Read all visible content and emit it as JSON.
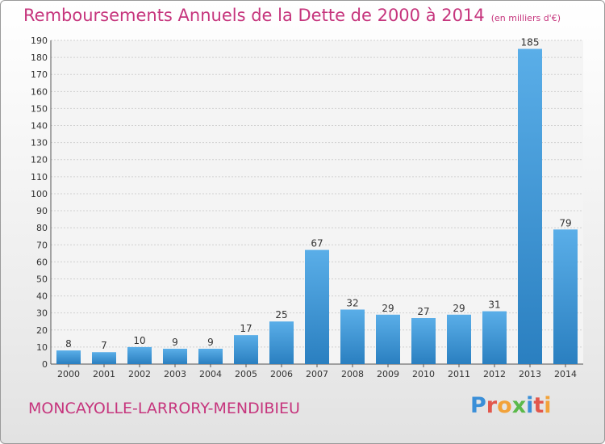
{
  "header": {
    "title": "Remboursements Annuels de la Dette de 2000 à 2014",
    "subtitle": "(en milliers d'€)"
  },
  "footer": {
    "commune": "MONCAYOLLE-LARRORY-MENDIBIEU",
    "logo": "Proxiti"
  },
  "colors": {
    "accent": "#c6357d",
    "bar_top": "#5aaee8",
    "bar_bottom": "#2a7fc0"
  },
  "chart_data": {
    "type": "bar",
    "categories": [
      "2000",
      "2001",
      "2002",
      "2003",
      "2004",
      "2005",
      "2006",
      "2007",
      "2008",
      "2009",
      "2010",
      "2011",
      "2012",
      "2013",
      "2014"
    ],
    "values": [
      8,
      7,
      10,
      9,
      9,
      17,
      25,
      67,
      32,
      29,
      27,
      29,
      31,
      185,
      79
    ],
    "title": "Remboursements Annuels de la Dette de 2000 à 2014",
    "subtitle": "(en milliers d'€)",
    "xlabel": "",
    "ylabel": "",
    "ylim": [
      0,
      190
    ],
    "yticks": [
      0,
      10,
      20,
      30,
      40,
      50,
      60,
      70,
      80,
      90,
      100,
      110,
      120,
      130,
      140,
      150,
      160,
      170,
      180,
      190
    ],
    "grid": true,
    "legend": "none"
  }
}
